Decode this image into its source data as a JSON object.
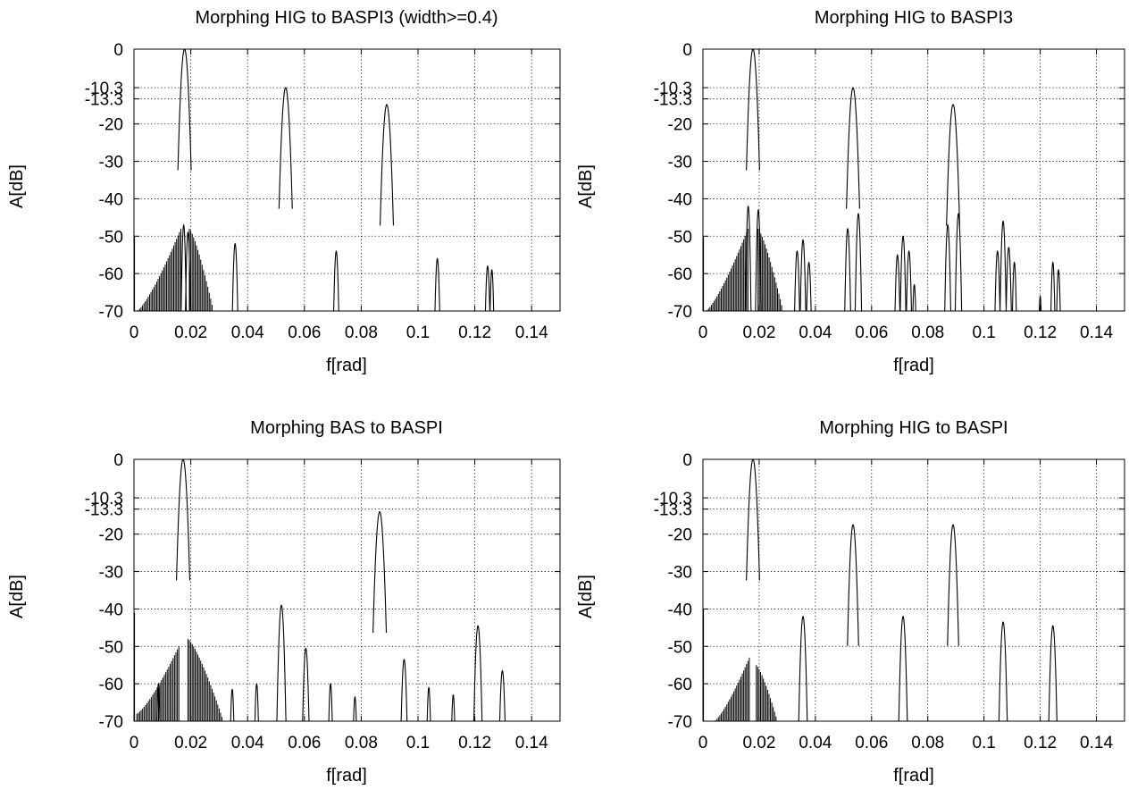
{
  "colors": {
    "trace": "#000000",
    "grid": "#000000",
    "frame": "#000000",
    "background": "#ffffff"
  },
  "chart_data": [
    {
      "type": "line",
      "title": "Morphing HIG to BASPI3 (width>=0.4)",
      "xlabel": "f[rad]",
      "ylabel": "A[dB]",
      "xlim": [
        0,
        0.15
      ],
      "ylim": [
        -70,
        0
      ],
      "xticks": [
        0,
        0.02,
        0.04,
        0.06,
        0.08,
        0.1,
        0.12,
        0.14
      ],
      "xtick_labels": [
        "0",
        "0.02",
        "0.04",
        "0.06",
        "0.08",
        "0.1",
        "0.12",
        "0.14"
      ],
      "yticks": [
        0,
        -10.3,
        -13.3,
        -20,
        -30,
        -40,
        -50,
        -60,
        -70
      ],
      "ytick_labels": [
        "0",
        "-10.3",
        "-13.3",
        "-20",
        "-30",
        "-40",
        "-50",
        "-60",
        "-70"
      ],
      "grid": true,
      "peaks": [
        {
          "f": 0.0178,
          "a": 0,
          "w": 0.0013
        },
        {
          "f": 0.0534,
          "a": -10.3,
          "w": 0.0013
        },
        {
          "f": 0.089,
          "a": -14.8,
          "w": 0.0013
        },
        {
          "f": 0.0356,
          "a": -52,
          "w": 0.0007
        },
        {
          "f": 0.0712,
          "a": -54,
          "w": 0.0007
        },
        {
          "f": 0.1068,
          "a": -56,
          "w": 0.0007
        },
        {
          "f": 0.1245,
          "a": -58,
          "w": 0.0007
        },
        {
          "f": 0.126,
          "a": -59,
          "w": 0.0006
        },
        {
          "f": 0.0175,
          "a": -47,
          "w": 0.0006
        },
        {
          "f": 0.019,
          "a": -49,
          "w": 0.0006
        }
      ],
      "skirts": [
        {
          "from": 0.001,
          "to": 0.0165,
          "start": -70,
          "end": -48
        },
        {
          "from": 0.0195,
          "to": 0.028,
          "start": -48,
          "end": -70
        }
      ],
      "edge_spike": -50
    },
    {
      "type": "line",
      "title": "Morphing HIG to BASPI3",
      "xlabel": "f[rad]",
      "ylabel": "A[dB]",
      "xlim": [
        0,
        0.15
      ],
      "ylim": [
        -70,
        0
      ],
      "xticks": [
        0,
        0.02,
        0.04,
        0.06,
        0.08,
        0.1,
        0.12,
        0.14
      ],
      "xtick_labels": [
        "0",
        "0.02",
        "0.04",
        "0.06",
        "0.08",
        "0.1",
        "0.12",
        "0.14"
      ],
      "yticks": [
        0,
        -10.3,
        -13.3,
        -20,
        -30,
        -40,
        -50,
        -60,
        -70
      ],
      "ytick_labels": [
        "0",
        "-10.3",
        "-13.3",
        "-20",
        "-30",
        "-40",
        "-50",
        "-60",
        "-70"
      ],
      "grid": true,
      "peaks": [
        {
          "f": 0.0178,
          "a": 0,
          "w": 0.0013
        },
        {
          "f": 0.0534,
          "a": -10.3,
          "w": 0.0013
        },
        {
          "f": 0.089,
          "a": -14.8,
          "w": 0.0013
        },
        {
          "f": 0.0161,
          "a": -42,
          "w": 0.0006
        },
        {
          "f": 0.0197,
          "a": -43,
          "w": 0.0006
        },
        {
          "f": 0.0515,
          "a": -48,
          "w": 0.0007
        },
        {
          "f": 0.0553,
          "a": -44,
          "w": 0.0007
        },
        {
          "f": 0.0871,
          "a": -47,
          "w": 0.0007
        },
        {
          "f": 0.0909,
          "a": -44,
          "w": 0.0007
        },
        {
          "f": 0.0335,
          "a": -54,
          "w": 0.0007
        },
        {
          "f": 0.0356,
          "a": -51,
          "w": 0.0007
        },
        {
          "f": 0.0377,
          "a": -57,
          "w": 0.0007
        },
        {
          "f": 0.0692,
          "a": -55,
          "w": 0.0007
        },
        {
          "f": 0.0712,
          "a": -50,
          "w": 0.0007
        },
        {
          "f": 0.0733,
          "a": -54,
          "w": 0.0007
        },
        {
          "f": 0.0752,
          "a": -63,
          "w": 0.0006
        },
        {
          "f": 0.1048,
          "a": -54,
          "w": 0.0007
        },
        {
          "f": 0.1068,
          "a": -46,
          "w": 0.0007
        },
        {
          "f": 0.1088,
          "a": -53,
          "w": 0.0007
        },
        {
          "f": 0.1108,
          "a": -57,
          "w": 0.0006
        },
        {
          "f": 0.1245,
          "a": -57,
          "w": 0.0006
        },
        {
          "f": 0.1265,
          "a": -59,
          "w": 0.0006
        },
        {
          "f": 0.12,
          "a": -66,
          "w": 0.0005
        }
      ],
      "skirts": [
        {
          "from": 0.001,
          "to": 0.016,
          "start": -70,
          "end": -48
        },
        {
          "from": 0.0196,
          "to": 0.0285,
          "start": -48,
          "end": -70
        }
      ],
      "edge_spike": -50
    },
    {
      "type": "line",
      "title": "Morphing BAS to BASPI",
      "xlabel": "f[rad]",
      "ylabel": "A[dB]",
      "xlim": [
        0,
        0.15
      ],
      "ylim": [
        -70,
        0
      ],
      "xticks": [
        0,
        0.02,
        0.04,
        0.06,
        0.08,
        0.1,
        0.12,
        0.14
      ],
      "xtick_labels": [
        "0",
        "0.02",
        "0.04",
        "0.06",
        "0.08",
        "0.1",
        "0.12",
        "0.14"
      ],
      "yticks": [
        0,
        -10.3,
        -13.3,
        -20,
        -30,
        -40,
        -50,
        -60,
        -70
      ],
      "ytick_labels": [
        "0",
        "-10.3",
        "-13.3",
        "-20",
        "-30",
        "-40",
        "-50",
        "-60",
        "-70"
      ],
      "grid": true,
      "peaks": [
        {
          "f": 0.0173,
          "a": 0,
          "w": 0.0013
        },
        {
          "f": 0.0865,
          "a": -14,
          "w": 0.0013
        },
        {
          "f": 0.0519,
          "a": -39,
          "w": 0.0009
        },
        {
          "f": 0.1211,
          "a": -44.5,
          "w": 0.0009
        },
        {
          "f": 0.0605,
          "a": -50.5,
          "w": 0.0008
        },
        {
          "f": 0.0951,
          "a": -53.5,
          "w": 0.0008
        },
        {
          "f": 0.1297,
          "a": -56.5,
          "w": 0.0008
        },
        {
          "f": 0.0346,
          "a": -61.5,
          "w": 0.0006
        },
        {
          "f": 0.0432,
          "a": -60,
          "w": 0.0006
        },
        {
          "f": 0.0692,
          "a": -60,
          "w": 0.0006
        },
        {
          "f": 0.0778,
          "a": -63.5,
          "w": 0.0006
        },
        {
          "f": 0.1038,
          "a": -61,
          "w": 0.0006
        },
        {
          "f": 0.1124,
          "a": -63,
          "w": 0.0006
        },
        {
          "f": 0.0086,
          "a": -60,
          "w": 0.0005
        }
      ],
      "skirts": [
        {
          "from": 0.001,
          "to": 0.0158,
          "start": -68,
          "end": -50
        },
        {
          "from": 0.019,
          "to": 0.0315,
          "start": -48,
          "end": -70
        }
      ],
      "edge_spike": -41
    },
    {
      "type": "line",
      "title": "Morphing HIG to BASPI",
      "xlabel": "f[rad]",
      "ylabel": "A[dB]",
      "xlim": [
        0,
        0.15
      ],
      "ylim": [
        -70,
        0
      ],
      "xticks": [
        0,
        0.02,
        0.04,
        0.06,
        0.08,
        0.1,
        0.12,
        0.14
      ],
      "xtick_labels": [
        "0",
        "0.02",
        "0.04",
        "0.06",
        "0.08",
        "0.1",
        "0.12",
        "0.14"
      ],
      "yticks": [
        0,
        -10.3,
        -13.3,
        -20,
        -30,
        -40,
        -50,
        -60,
        -70
      ],
      "ytick_labels": [
        "0",
        "-10.3",
        "-13.3",
        "-20",
        "-30",
        "-40",
        "-50",
        "-60",
        "-70"
      ],
      "grid": true,
      "peaks": [
        {
          "f": 0.0178,
          "a": 0,
          "w": 0.0013
        },
        {
          "f": 0.0534,
          "a": -17.5,
          "w": 0.0011
        },
        {
          "f": 0.089,
          "a": -17.5,
          "w": 0.0011
        },
        {
          "f": 0.0356,
          "a": -42,
          "w": 0.0009
        },
        {
          "f": 0.0712,
          "a": -42,
          "w": 0.0009
        },
        {
          "f": 0.1068,
          "a": -43.5,
          "w": 0.0009
        },
        {
          "f": 0.1245,
          "a": -44.5,
          "w": 0.0009
        }
      ],
      "skirts": [
        {
          "from": 0.004,
          "to": 0.0165,
          "start": -70,
          "end": -53
        },
        {
          "from": 0.019,
          "to": 0.0265,
          "start": -55,
          "end": -70
        }
      ],
      "edge_spike": -40
    }
  ]
}
